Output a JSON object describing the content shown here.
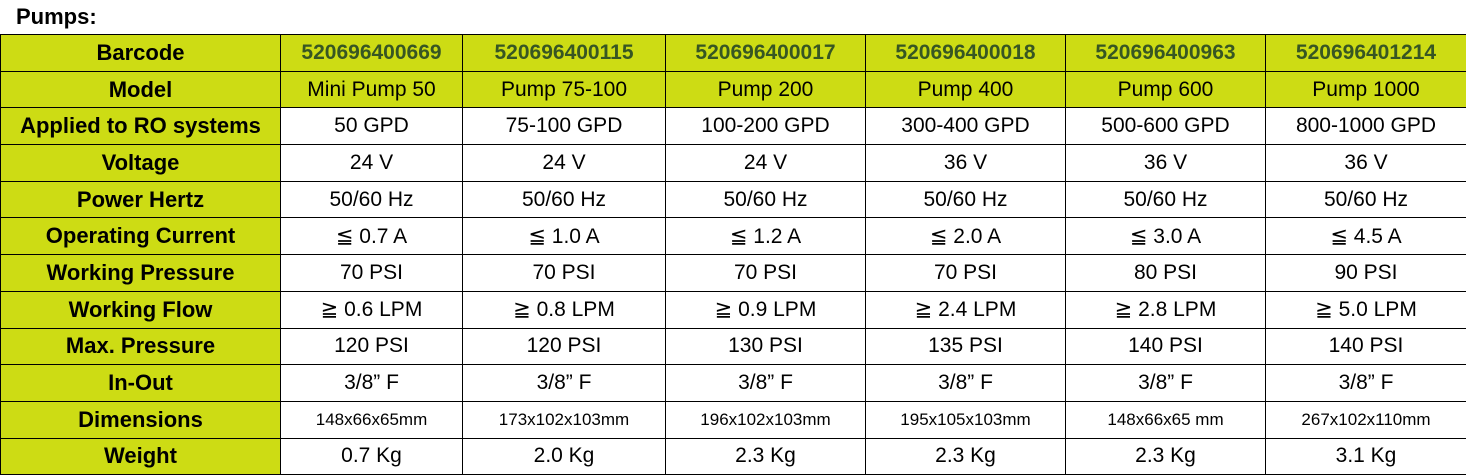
{
  "title": "Pumps:",
  "table": {
    "rows": [
      [
        "Barcode",
        "520696400669",
        "520696400115",
        "520696400017",
        "520696400018",
        "520696400963",
        "520696401214"
      ],
      [
        "Model",
        "Mini Pump 50",
        "Pump 75-100",
        "Pump 200",
        "Pump 400",
        "Pump 600",
        "Pump 1000"
      ],
      [
        "Applied to RO systems",
        "50 GPD",
        "75-100 GPD",
        "100-200 GPD",
        "300-400 GPD",
        "500-600 GPD",
        "800-1000 GPD"
      ],
      [
        "Voltage",
        "24 V",
        "24 V",
        "24 V",
        "36 V",
        "36 V",
        "36 V"
      ],
      [
        "Power Hertz",
        "50/60 Hz",
        "50/60 Hz",
        "50/60 Hz",
        "50/60 Hz",
        "50/60 Hz",
        "50/60 Hz"
      ],
      [
        "Operating Current",
        "≦ 0.7 A",
        "≦ 1.0 A",
        "≦ 1.2 A",
        "≦ 2.0 A",
        "≦ 3.0 A",
        "≦ 4.5 A"
      ],
      [
        "Working Pressure",
        "70 PSI",
        "70 PSI",
        "70 PSI",
        "70 PSI",
        "80 PSI",
        "90 PSI"
      ],
      [
        "Working Flow",
        "≧ 0.6 LPM",
        "≧ 0.8 LPM",
        "≧ 0.9 LPM",
        "≧ 2.4 LPM",
        "≧ 2.8 LPM",
        "≧ 5.0 LPM"
      ],
      [
        "Max. Pressure",
        "120 PSI",
        "120 PSI",
        "130 PSI",
        "135 PSI",
        "140 PSI",
        "140 PSI"
      ],
      [
        "In-Out",
        "3/8” F",
        "3/8” F",
        "3/8” F",
        "3/8” F",
        "3/8” F",
        "3/8” F"
      ],
      [
        "Dimensions",
        "148x66x65mm",
        "173x102x103mm",
        "196x102x103mm",
        "195x105x103mm",
        "148x66x65 mm",
        "267x102x110mm"
      ],
      [
        "Weight",
        "0.7 Kg",
        "2.0 Kg",
        "2.3 Kg",
        "2.3 Kg",
        "2.3 Kg",
        "3.1 Kg"
      ]
    ]
  }
}
